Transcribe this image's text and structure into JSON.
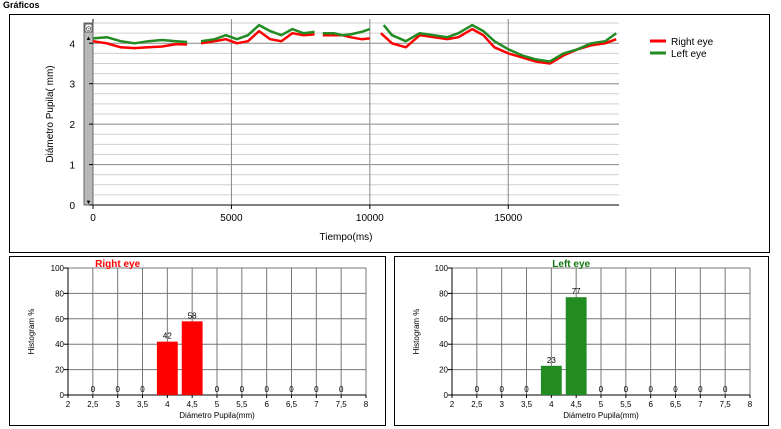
{
  "section_title": "Gráficos",
  "colors": {
    "right": "#ff0000",
    "left": "#228b22",
    "rightTitle": "#ff0000",
    "leftTitle": "#117711"
  },
  "chart_data": [
    {
      "type": "line",
      "xlabel": "Tiempo(ms)",
      "ylabel": "Diámetro Pupila( mm)",
      "xlim": [
        0,
        19000
      ],
      "ylim": [
        0,
        4.6
      ],
      "xticks": [
        "0",
        "5000",
        "10000",
        "15000"
      ],
      "yticks": [
        "0",
        "1",
        "2",
        "3",
        "4"
      ],
      "grid": true,
      "legend_position": "top-right",
      "series": [
        {
          "name": "Right eye",
          "color": "#ff0000",
          "segments": [
            [
              [
                0,
                4.05
              ],
              [
                500,
                4.0
              ],
              [
                1000,
                3.9
              ],
              [
                1500,
                3.88
              ],
              [
                2000,
                3.9
              ],
              [
                2500,
                3.92
              ],
              [
                3000,
                3.98
              ],
              [
                3400,
                3.97
              ]
            ],
            [
              [
                3900,
                4.0
              ],
              [
                4400,
                4.05
              ],
              [
                4800,
                4.1
              ],
              [
                5200,
                4.0
              ],
              [
                5600,
                4.05
              ],
              [
                6000,
                4.3
              ],
              [
                6400,
                4.1
              ],
              [
                6800,
                4.05
              ],
              [
                7200,
                4.25
              ],
              [
                7600,
                4.2
              ],
              [
                8000,
                4.22
              ]
            ],
            [
              [
                8300,
                4.2
              ],
              [
                8700,
                4.2
              ],
              [
                9000,
                4.2
              ],
              [
                9300,
                4.15
              ],
              [
                9700,
                4.1
              ],
              [
                10000,
                4.12
              ]
            ],
            [
              [
                10400,
                4.25
              ],
              [
                10800,
                4.0
              ],
              [
                11300,
                3.9
              ],
              [
                11800,
                4.2
              ],
              [
                12300,
                4.15
              ],
              [
                12800,
                4.1
              ],
              [
                13200,
                4.15
              ],
              [
                13700,
                4.35
              ],
              [
                14100,
                4.2
              ],
              [
                14500,
                3.9
              ],
              [
                15000,
                3.75
              ],
              [
                15500,
                3.65
              ],
              [
                16000,
                3.55
              ],
              [
                16500,
                3.5
              ],
              [
                17000,
                3.7
              ],
              [
                17500,
                3.85
              ],
              [
                18000,
                3.95
              ],
              [
                18500,
                4.0
              ],
              [
                18900,
                4.1
              ]
            ]
          ]
        },
        {
          "name": "Left eye",
          "color": "#228b22",
          "segments": [
            [
              [
                0,
                4.12
              ],
              [
                500,
                4.15
              ],
              [
                1000,
                4.05
              ],
              [
                1500,
                4.0
              ],
              [
                2000,
                4.05
              ],
              [
                2500,
                4.08
              ],
              [
                3000,
                4.05
              ],
              [
                3400,
                4.03
              ]
            ],
            [
              [
                3900,
                4.05
              ],
              [
                4400,
                4.1
              ],
              [
                4800,
                4.2
              ],
              [
                5200,
                4.1
              ],
              [
                5600,
                4.2
              ],
              [
                6000,
                4.45
              ],
              [
                6400,
                4.3
              ],
              [
                6800,
                4.2
              ],
              [
                7200,
                4.35
              ],
              [
                7600,
                4.25
              ],
              [
                8000,
                4.28
              ]
            ],
            [
              [
                8300,
                4.25
              ],
              [
                8700,
                4.25
              ],
              [
                9000,
                4.2
              ],
              [
                9300,
                4.22
              ],
              [
                9700,
                4.28
              ],
              [
                10000,
                4.35
              ]
            ],
            [
              [
                10500,
                4.45
              ],
              [
                10800,
                4.2
              ],
              [
                11300,
                4.05
              ],
              [
                11800,
                4.25
              ],
              [
                12300,
                4.2
              ],
              [
                12800,
                4.15
              ],
              [
                13200,
                4.25
              ],
              [
                13700,
                4.45
              ],
              [
                14100,
                4.3
              ],
              [
                14500,
                4.05
              ],
              [
                15000,
                3.85
              ],
              [
                15500,
                3.7
              ],
              [
                16000,
                3.6
              ],
              [
                16500,
                3.55
              ],
              [
                17000,
                3.75
              ],
              [
                17500,
                3.85
              ],
              [
                18000,
                4.0
              ],
              [
                18500,
                4.05
              ],
              [
                18900,
                4.25
              ]
            ]
          ]
        }
      ]
    },
    {
      "type": "bar",
      "title": "Right eye",
      "color": "#ff0000",
      "xlabel": "Diámetro Pupila(mm)",
      "ylabel": "Histogram %",
      "categories": [
        "2,5",
        "3",
        "3,5",
        "4",
        "4,5",
        "5",
        "5,5",
        "6",
        "6,5",
        "7",
        "7,5"
      ],
      "values": [
        0,
        0,
        0,
        42,
        58,
        0,
        0,
        0,
        0,
        0,
        0
      ],
      "value_labels": [
        "0",
        "0",
        "0",
        "42",
        "58",
        "0",
        "0",
        "0",
        "0",
        "0",
        "0"
      ],
      "xticks": [
        "2",
        "2,5",
        "3",
        "3,5",
        "4",
        "4,5",
        "5",
        "5,5",
        "6",
        "6,5",
        "7",
        "7,5",
        "8"
      ],
      "yticks": [
        "0",
        "20",
        "40",
        "60",
        "80",
        "100"
      ],
      "ylim": [
        0,
        100
      ]
    },
    {
      "type": "bar",
      "title": "Left eye",
      "color": "#228b22",
      "xlabel": "Diámetro Pupila(mm)",
      "ylabel": "Histogram %",
      "categories": [
        "2,5",
        "3",
        "3,5",
        "4",
        "4,5",
        "5",
        "5,5",
        "6",
        "6,5",
        "7",
        "7,5"
      ],
      "values": [
        0,
        0,
        0,
        23,
        77,
        0,
        0,
        0,
        0,
        0,
        0
      ],
      "value_labels": [
        "0",
        "0",
        "0",
        "23",
        "77",
        "0",
        "0",
        "0",
        "0",
        "0",
        "0"
      ],
      "xticks": [
        "2",
        "2,5",
        "3",
        "3,5",
        "4",
        "4,5",
        "5",
        "5,5",
        "6",
        "6,5",
        "7",
        "7,5",
        "8"
      ],
      "yticks": [
        "0",
        "20",
        "40",
        "60",
        "80",
        "100"
      ],
      "ylim": [
        0,
        100
      ]
    }
  ]
}
